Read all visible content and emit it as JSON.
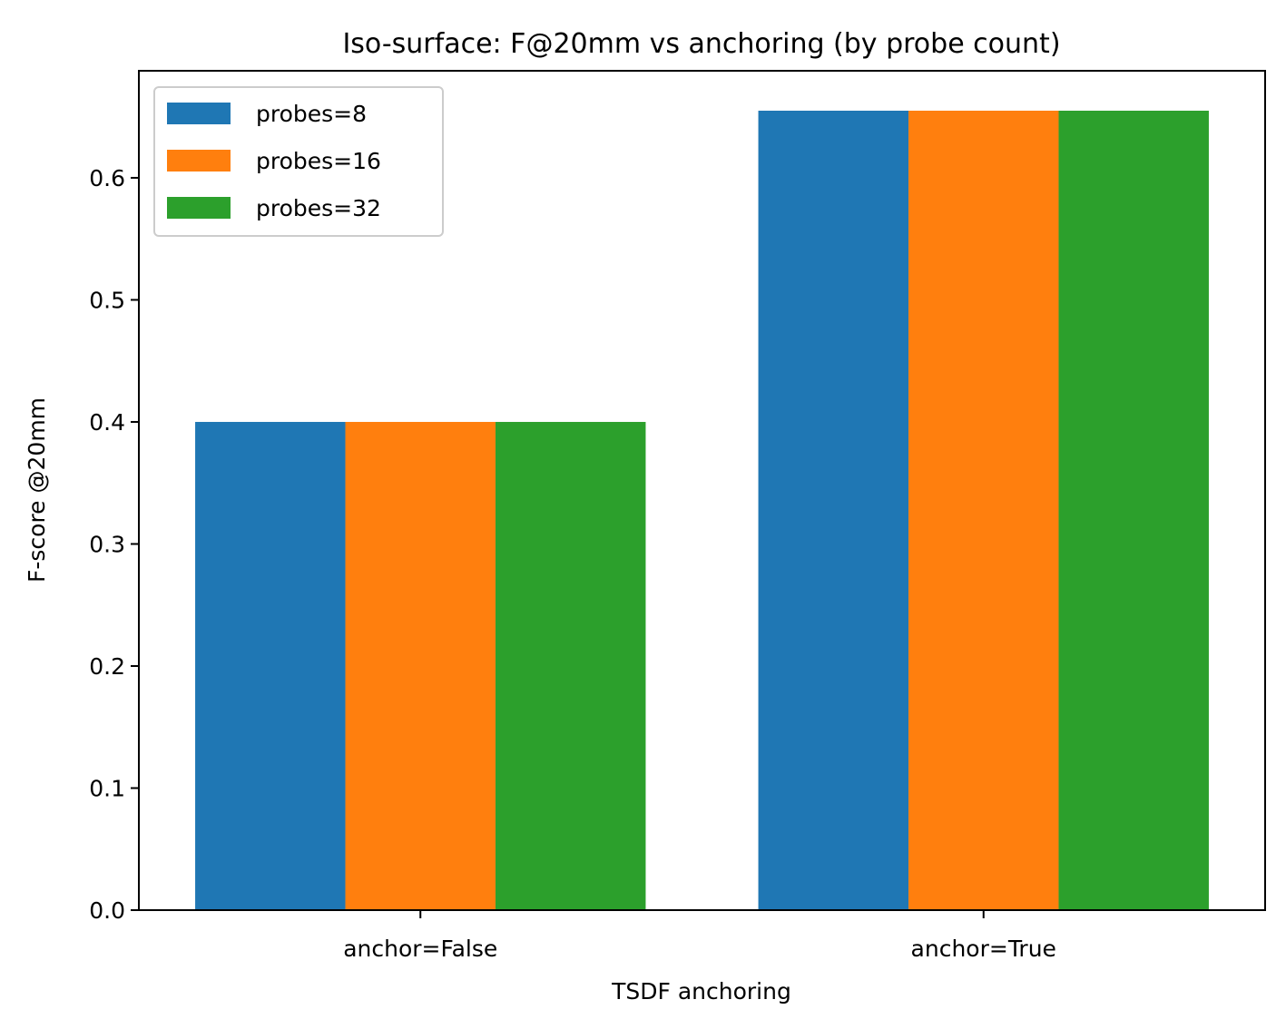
{
  "chart_data": {
    "type": "bar",
    "title": "Iso-surface: F@20mm vs anchoring (by probe count)",
    "xlabel": "TSDF anchoring",
    "ylabel": "F-score @20mm",
    "categories": [
      "anchor=False",
      "anchor=True"
    ],
    "series": [
      {
        "name": "probes=8",
        "color": "#1f77b4",
        "values": [
          0.4,
          0.655
        ]
      },
      {
        "name": "probes=16",
        "color": "#ff7f0e",
        "values": [
          0.4,
          0.655
        ]
      },
      {
        "name": "probes=32",
        "color": "#2ca02c",
        "values": [
          0.4,
          0.655
        ]
      }
    ],
    "ylim": [
      0,
      0.6877
    ],
    "yticks": [
      0.0,
      0.1,
      0.2,
      0.3,
      0.4,
      0.5,
      0.6
    ],
    "ytick_labels": [
      "0.0",
      "0.1",
      "0.2",
      "0.3",
      "0.4",
      "0.5",
      "0.6"
    ],
    "grid": false,
    "legend_position": "top-left"
  }
}
